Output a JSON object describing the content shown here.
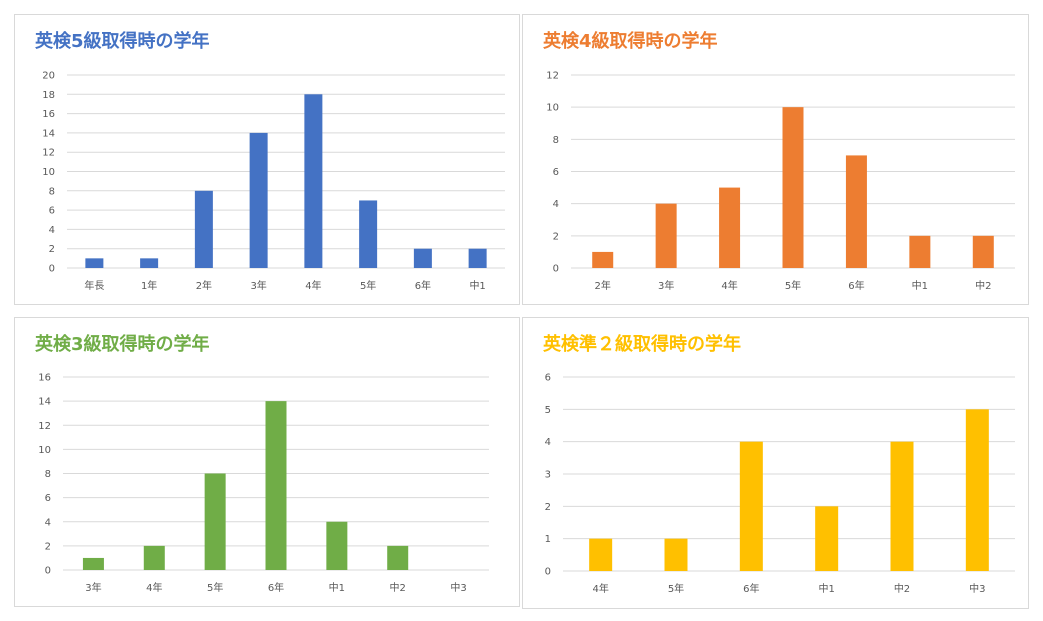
{
  "chart_data": [
    {
      "type": "bar",
      "title": "英検5級取得時の学年",
      "color": "#4472C4",
      "categories": [
        "年長",
        "1年",
        "2年",
        "3年",
        "4年",
        "5年",
        "6年",
        "中1"
      ],
      "values": [
        1,
        1,
        8,
        14,
        18,
        7,
        2,
        2
      ],
      "ylim": [
        0,
        20
      ],
      "yticks": [
        "0",
        "2",
        "4",
        "6",
        "8",
        "10",
        "12",
        "14",
        "16",
        "18",
        "20"
      ],
      "grid": true,
      "legend": "none"
    },
    {
      "type": "bar",
      "title": "英検4級取得時の学年",
      "color": "#ED7D31",
      "categories": [
        "2年",
        "3年",
        "4年",
        "5年",
        "6年",
        "中1",
        "中2"
      ],
      "values": [
        1,
        4,
        5,
        10,
        7,
        2,
        2
      ],
      "ylim": [
        0,
        12
      ],
      "yticks": [
        "0",
        "2",
        "4",
        "6",
        "8",
        "10",
        "12"
      ],
      "grid": true,
      "legend": "none"
    },
    {
      "type": "bar",
      "title": "英検3級取得時の学年",
      "color": "#70AD47",
      "categories": [
        "3年",
        "4年",
        "5年",
        "6年",
        "中1",
        "中2",
        "中3"
      ],
      "values": [
        1,
        2,
        8,
        14,
        4,
        2,
        0
      ],
      "ylim": [
        0,
        16
      ],
      "yticks": [
        "0",
        "2",
        "4",
        "6",
        "8",
        "10",
        "12",
        "14",
        "16"
      ],
      "grid": true,
      "legend": "none"
    },
    {
      "type": "bar",
      "title": "英検準２級取得時の学年",
      "color": "#FFC000",
      "categories": [
        "4年",
        "5年",
        "6年",
        "中1",
        "中2",
        "中3"
      ],
      "values": [
        1,
        1,
        4,
        2,
        4,
        5
      ],
      "ylim": [
        0,
        6
      ],
      "yticks": [
        "0",
        "1",
        "2",
        "3",
        "4",
        "5",
        "6"
      ],
      "grid": true,
      "legend": "none"
    }
  ]
}
